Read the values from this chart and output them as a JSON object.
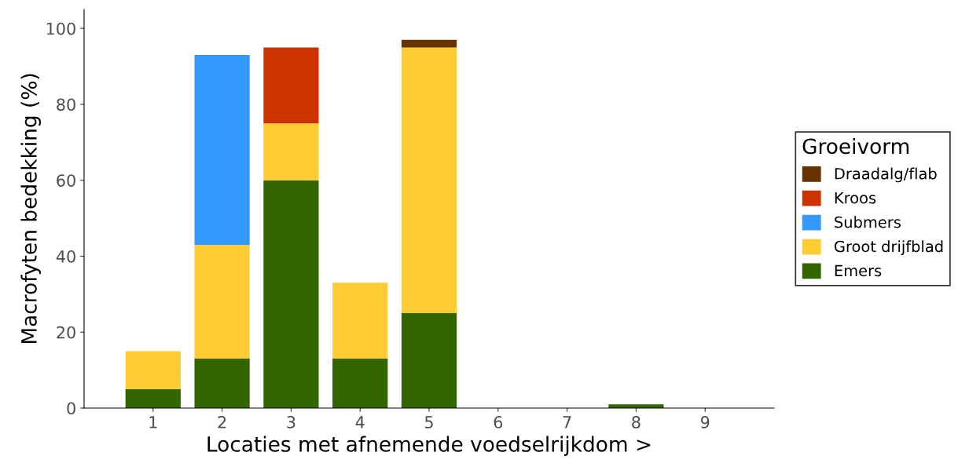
{
  "chart_data": {
    "type": "bar",
    "stacked": true,
    "xlabel": "Locaties met afnemende voedselrijkdom >",
    "ylabel": "Macrofyten bedekking (%)",
    "legend_title": "Groeivorm",
    "legend": "right",
    "grid": false,
    "categories": [
      "1",
      "2",
      "3",
      "4",
      "5",
      "6",
      "7",
      "8",
      "9"
    ],
    "ylim": [
      0,
      105
    ],
    "yticks": [
      0,
      20,
      40,
      60,
      80,
      100
    ],
    "series": [
      {
        "name": "Emers",
        "color": "#336600",
        "values": [
          5,
          13,
          60,
          13,
          25,
          0,
          0,
          1,
          0
        ]
      },
      {
        "name": "Groot drijfblad",
        "color": "#ffcc33",
        "values": [
          10,
          30,
          15,
          20,
          70,
          0,
          0,
          0,
          0
        ]
      },
      {
        "name": "Submers",
        "color": "#3399ff",
        "values": [
          0,
          50,
          0,
          0,
          0,
          0,
          0,
          0,
          0
        ]
      },
      {
        "name": "Kroos",
        "color": "#cc3300",
        "values": [
          0,
          0,
          20,
          0,
          0,
          0,
          0,
          0,
          0
        ]
      },
      {
        "name": "Draadalg/flab",
        "color": "#663300",
        "values": [
          0,
          0,
          0,
          0,
          2,
          0,
          0,
          0,
          0
        ]
      }
    ]
  }
}
